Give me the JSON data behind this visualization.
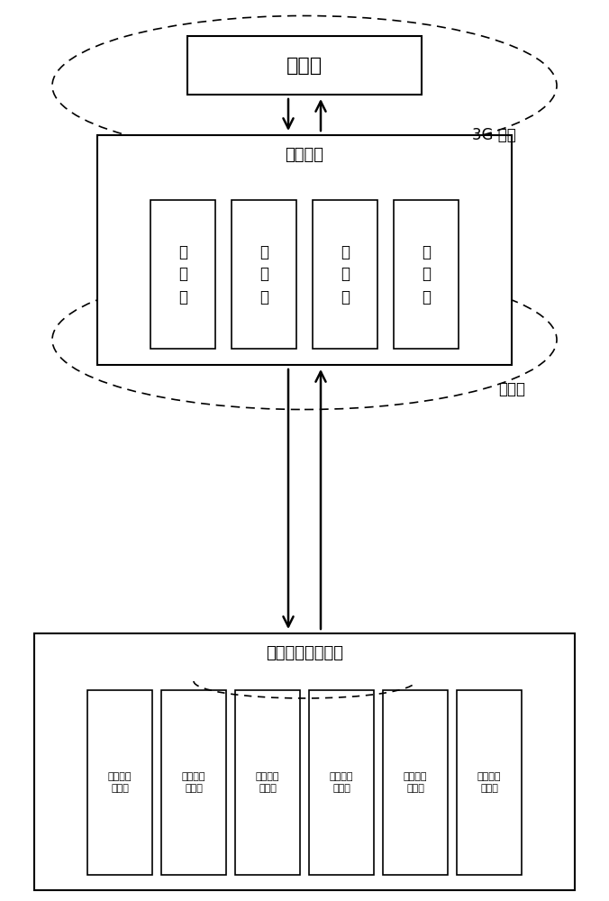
{
  "bg_color": "#ffffff",
  "server_label": "服务器",
  "middleware_group_label": "中间件群",
  "controller_group_label": "密集烤房控制器群",
  "network_3g_label": "3G 网络",
  "network_micro_label": "小微网",
  "middleware_item_label": "中间件",
  "controller_item_label": "密集烤房控制器",
  "n_middleware": 4,
  "n_controllers": 6,
  "figw": 6.76,
  "figh": 10.0
}
